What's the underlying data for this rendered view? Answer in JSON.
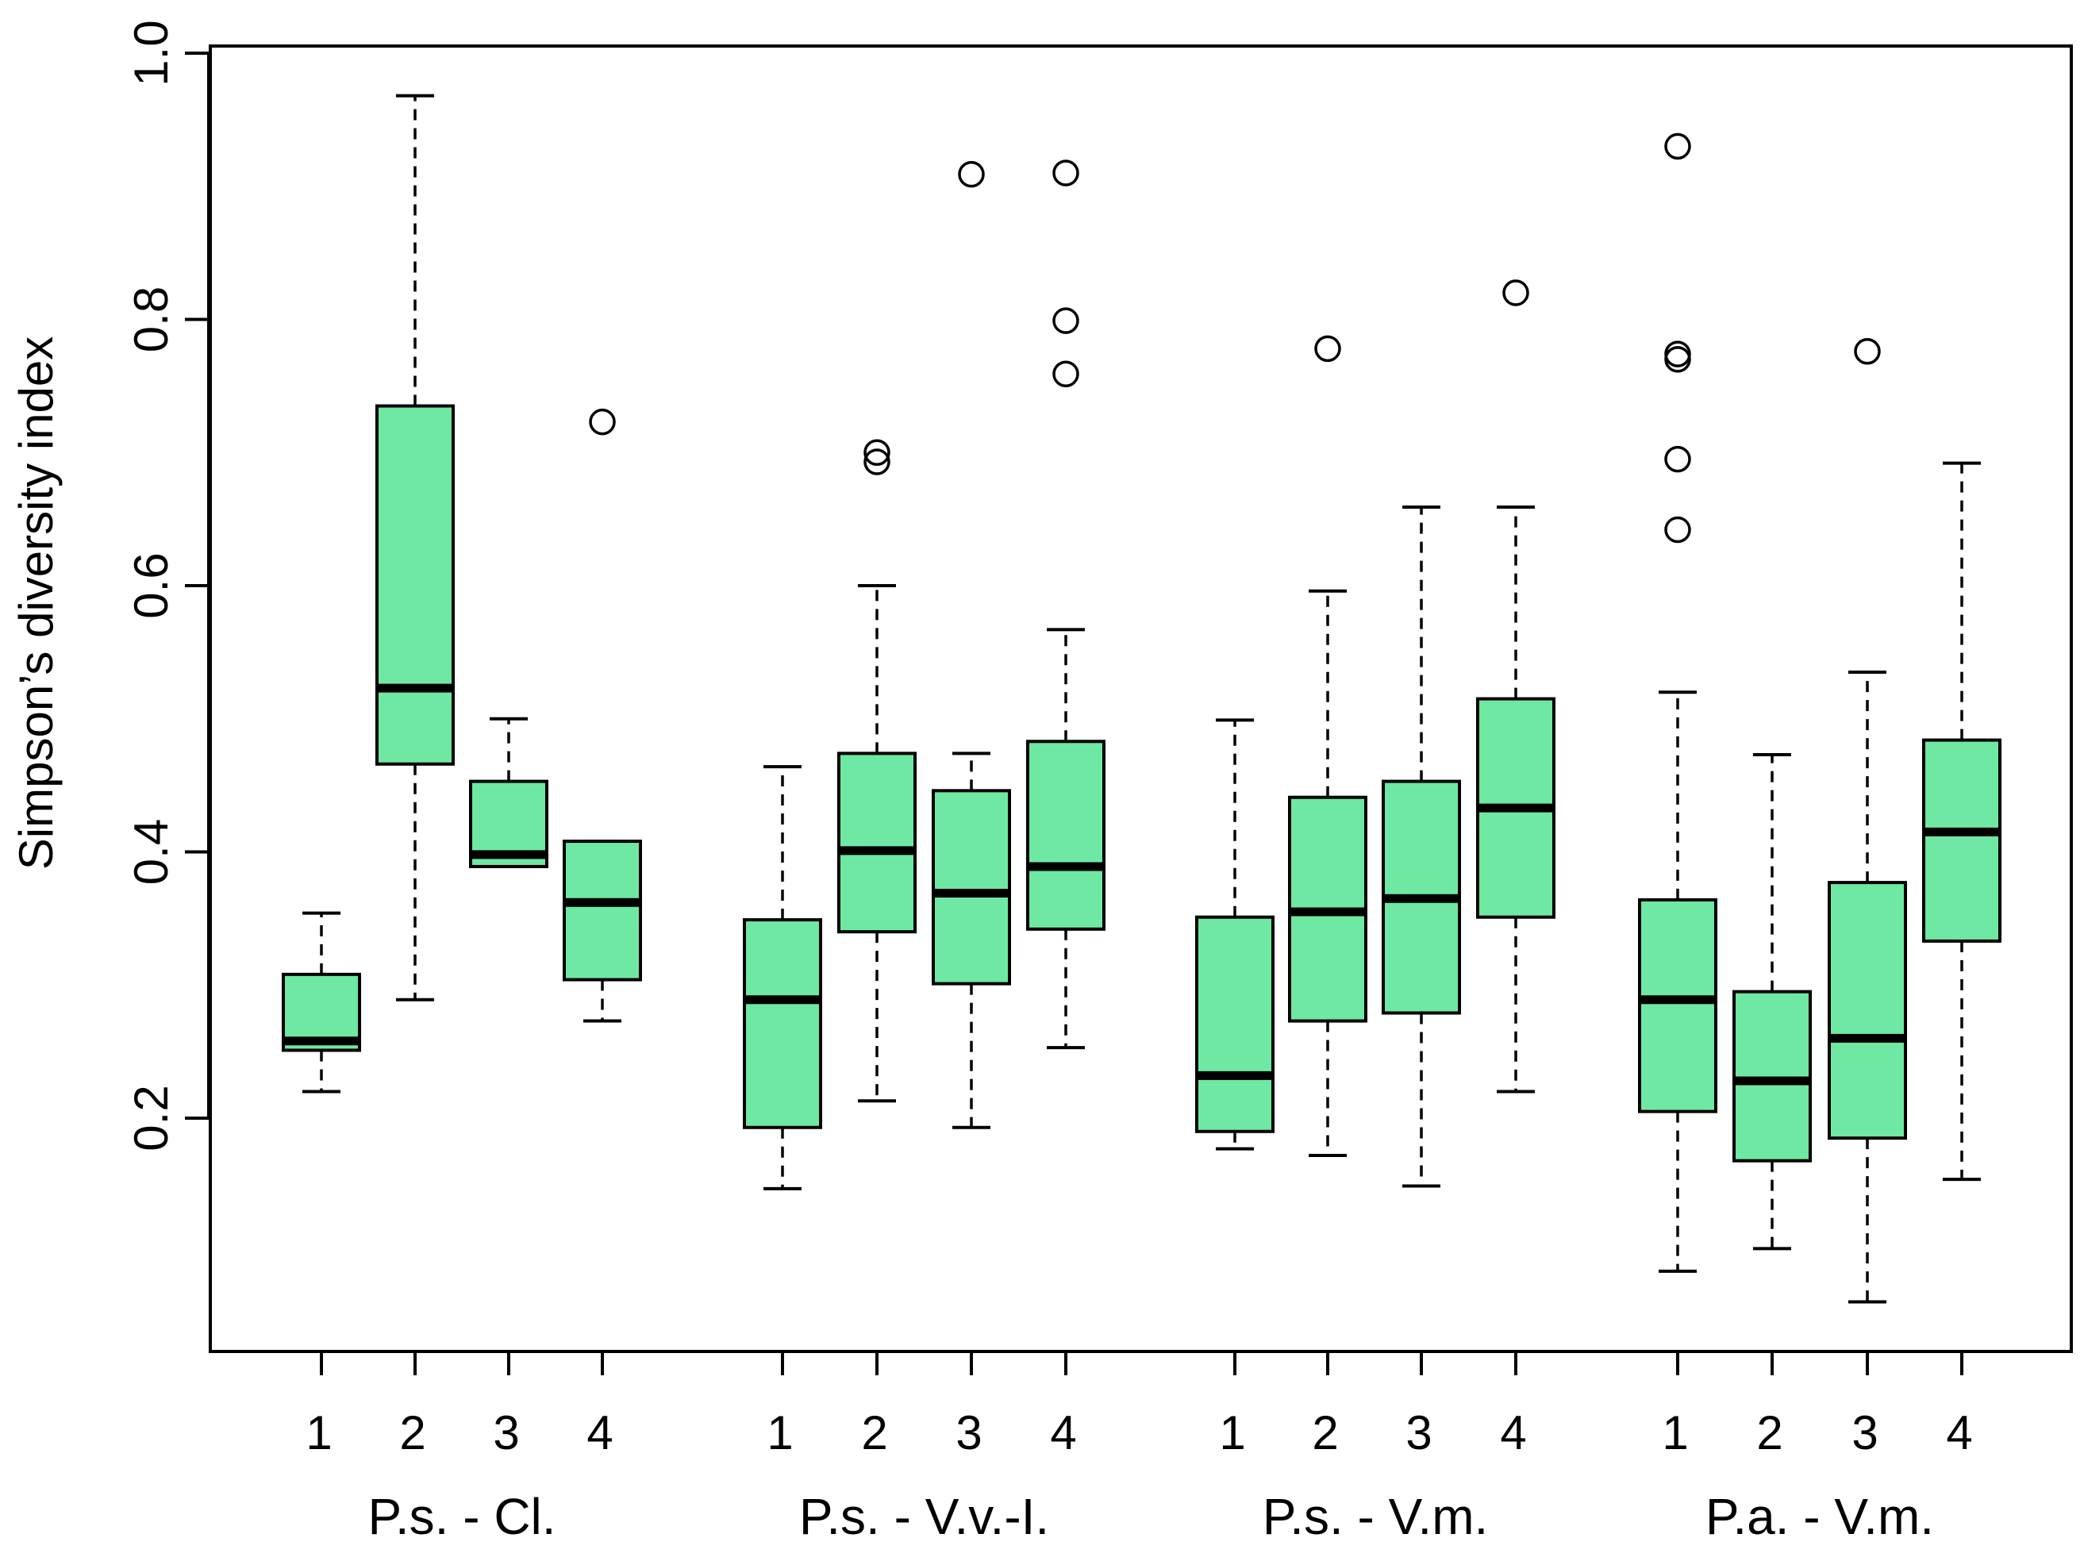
{
  "chart_data": {
    "type": "boxplot",
    "title": "",
    "xlabel": "",
    "ylabel": "Simpson’s diversity index",
    "ylim": [
      0.02,
      1.0
    ],
    "yticks": [
      0.2,
      0.4,
      0.6,
      0.8,
      1.0
    ],
    "ytick_labels": [
      "0.2",
      "0.4",
      "0.6",
      "0.8",
      "1.0"
    ],
    "grid": false,
    "box_color": "#6ee8a2",
    "groups": [
      {
        "label": "P.s. - Cl.",
        "boxes": [
          {
            "category": "1",
            "whisker_low": 0.22,
            "q1": 0.251,
            "median": 0.258,
            "q3": 0.308,
            "whisker_high": 0.354,
            "outliers": []
          },
          {
            "category": "2",
            "whisker_low": 0.289,
            "q1": 0.466,
            "median": 0.523,
            "q3": 0.735,
            "whisker_high": 0.968,
            "outliers": []
          },
          {
            "category": "3",
            "whisker_low": 0.389,
            "q1": 0.389,
            "median": 0.398,
            "q3": 0.453,
            "whisker_high": 0.5,
            "outliers": []
          },
          {
            "category": "4",
            "whisker_low": 0.273,
            "q1": 0.304,
            "median": 0.362,
            "q3": 0.408,
            "whisker_high": 0.408,
            "outliers": [
              0.723
            ]
          }
        ]
      },
      {
        "label": "P.s. - V.v.-I.",
        "boxes": [
          {
            "category": "1",
            "whisker_low": 0.147,
            "q1": 0.193,
            "median": 0.289,
            "q3": 0.349,
            "whisker_high": 0.464,
            "outliers": []
          },
          {
            "category": "2",
            "whisker_low": 0.213,
            "q1": 0.34,
            "median": 0.401,
            "q3": 0.474,
            "whisker_high": 0.6,
            "outliers": [
              0.7,
              0.693
            ]
          },
          {
            "category": "3",
            "whisker_low": 0.193,
            "q1": 0.301,
            "median": 0.369,
            "q3": 0.446,
            "whisker_high": 0.474,
            "outliers": [
              0.909
            ]
          },
          {
            "category": "4",
            "whisker_low": 0.253,
            "q1": 0.342,
            "median": 0.389,
            "q3": 0.483,
            "whisker_high": 0.567,
            "outliers": [
              0.91,
              0.799,
              0.759
            ]
          }
        ]
      },
      {
        "label": "P.s. - V.m.",
        "boxes": [
          {
            "category": "1",
            "whisker_low": 0.177,
            "q1": 0.19,
            "median": 0.232,
            "q3": 0.351,
            "whisker_high": 0.499,
            "outliers": []
          },
          {
            "category": "2",
            "whisker_low": 0.172,
            "q1": 0.273,
            "median": 0.355,
            "q3": 0.441,
            "whisker_high": 0.596,
            "outliers": [
              0.778
            ]
          },
          {
            "category": "3",
            "whisker_low": 0.149,
            "q1": 0.279,
            "median": 0.365,
            "q3": 0.453,
            "whisker_high": 0.659,
            "outliers": []
          },
          {
            "category": "4",
            "whisker_low": 0.22,
            "q1": 0.351,
            "median": 0.433,
            "q3": 0.515,
            "whisker_high": 0.659,
            "outliers": [
              0.82
            ]
          }
        ]
      },
      {
        "label": "P.a. - V.m.",
        "boxes": [
          {
            "category": "1",
            "whisker_low": 0.085,
            "q1": 0.205,
            "median": 0.289,
            "q3": 0.364,
            "whisker_high": 0.52,
            "outliers": [
              0.93,
              0.774,
              0.77,
              0.695,
              0.642
            ]
          },
          {
            "category": "2",
            "whisker_low": 0.102,
            "q1": 0.168,
            "median": 0.228,
            "q3": 0.295,
            "whisker_high": 0.473,
            "outliers": []
          },
          {
            "category": "3",
            "whisker_low": 0.062,
            "q1": 0.185,
            "median": 0.26,
            "q3": 0.377,
            "whisker_high": 0.535,
            "outliers": [
              0.776
            ]
          },
          {
            "category": "4",
            "whisker_low": 0.154,
            "q1": 0.333,
            "median": 0.415,
            "q3": 0.484,
            "whisker_high": 0.692,
            "outliers": []
          }
        ]
      }
    ]
  }
}
